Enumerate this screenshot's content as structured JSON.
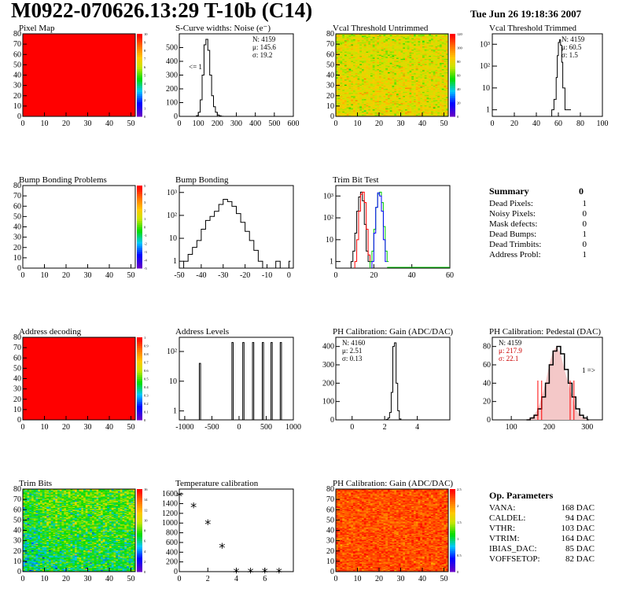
{
  "title": "M0922-070626.13:29 T-10b (C14)",
  "date": "Tue Jun 26 19:18:36 2007",
  "colors": {
    "red": "#ff0000",
    "green": "#00cc00",
    "hist": "#000000",
    "ph_stats": "#cc0000"
  },
  "panels": {
    "pixel_map": {
      "title": "Pixel Map",
      "xticks": [
        0,
        10,
        20,
        30,
        40,
        50
      ],
      "yticks": [
        0,
        10,
        20,
        30,
        40,
        50,
        60,
        70,
        80
      ],
      "palette": [
        "0",
        "1",
        "2",
        "3",
        "4",
        "5",
        "6",
        "7",
        "8",
        "9",
        "10"
      ]
    },
    "scurve": {
      "title": "S-Curve widths: Noise (e⁻)",
      "xticks": [
        0,
        100,
        200,
        300,
        400,
        500,
        600
      ],
      "yticks": [
        0,
        100,
        200,
        300,
        400,
        500
      ],
      "stats": {
        "n": "N: 4159",
        "mu": "μ: 145.6",
        "sigma": "σ: 19.2"
      },
      "note": "<= 1"
    },
    "vcal_untrimmed": {
      "title": "Vcal Threshold Untrimmed",
      "xticks": [
        0,
        10,
        20,
        30,
        40,
        50
      ],
      "yticks": [
        0,
        10,
        20,
        30,
        40,
        50,
        60,
        70,
        80
      ],
      "palette": [
        "0",
        "20",
        "40",
        "60",
        "80",
        "100",
        "120"
      ]
    },
    "vcal_trimmed": {
      "title": "Vcal Threshold Trimmed",
      "xticks": [
        0,
        20,
        40,
        60,
        80,
        100
      ],
      "yticks": [
        "1",
        "10",
        "10²",
        "10³"
      ],
      "stats": {
        "n": "N: 4159",
        "mu": "μ: 60.5",
        "sigma": "σ: 1.5"
      }
    },
    "bump_problems": {
      "title": "Bump Bonding Problems",
      "xticks": [
        0,
        10,
        20,
        30,
        40,
        50
      ],
      "yticks": [
        0,
        10,
        20,
        30,
        40,
        50,
        60,
        70,
        80
      ],
      "palette": [
        "-5",
        "-4",
        "-3",
        "-2",
        "-1",
        "0",
        "1",
        "2",
        "3",
        "4",
        "5"
      ]
    },
    "bump_bonding": {
      "title": "Bump Bonding",
      "xticks": [
        -50,
        -40,
        -30,
        -20,
        -10,
        0
      ],
      "yticks": [
        "1",
        "10",
        "10²",
        "10³"
      ]
    },
    "trim_bit_test": {
      "title": "Trim Bit Test",
      "xticks": [
        0,
        20,
        40,
        60
      ],
      "yticks": [
        "1",
        "10",
        "10²",
        "10³"
      ]
    },
    "summary": {
      "title": "Summary",
      "total": "0",
      "rows": [
        {
          "label": "Dead Pixels:",
          "value": "1"
        },
        {
          "label": "Noisy Pixels:",
          "value": "0"
        },
        {
          "label": "Mask defects:",
          "value": "0"
        },
        {
          "label": "Dead Bumps:",
          "value": "1"
        },
        {
          "label": "Dead Trimbits:",
          "value": "0"
        },
        {
          "label": "Address Probl:",
          "value": "1"
        }
      ]
    },
    "address_decoding": {
      "title": "Address decoding",
      "xticks": [
        0,
        10,
        20,
        30,
        40,
        50
      ],
      "yticks": [
        0,
        10,
        20,
        30,
        40,
        50,
        60,
        70,
        80
      ],
      "palette": [
        "0",
        "0.1",
        "0.2",
        "0.3",
        "0.4",
        "0.5",
        "0.6",
        "0.7",
        "0.8",
        "0.9",
        "1"
      ]
    },
    "address_levels": {
      "title": "Address Levels",
      "xticks": [
        -1000,
        -500,
        0,
        500,
        1000
      ],
      "yticks": [
        "1",
        "10",
        "10²"
      ]
    },
    "ph_gain": {
      "title": "PH Calibration: Gain (ADC/DAC)",
      "xticks": [
        0,
        2,
        4
      ],
      "yticks": [
        0,
        100,
        200,
        300,
        400
      ],
      "stats": {
        "n": "N: 4160",
        "mu": "μ: 2.51",
        "sigma": "σ: 0.13"
      }
    },
    "ph_pedestal": {
      "title": "PH Calibration: Pedestal (DAC)",
      "xticks": [
        100,
        200,
        300
      ],
      "yticks": [
        0,
        20,
        40,
        60,
        80
      ],
      "stats": {
        "n": "N: 4159",
        "mu": "μ: 217.9",
        "sigma": "σ: 22.1"
      },
      "note": "1 =>"
    },
    "trim_bits": {
      "title": "Trim Bits",
      "xticks": [
        0,
        10,
        20,
        30,
        40,
        50
      ],
      "yticks": [
        0,
        10,
        20,
        30,
        40,
        50,
        60,
        70,
        80
      ],
      "palette": [
        "0",
        "2",
        "4",
        "6",
        "8",
        "10",
        "12",
        "14",
        "16"
      ]
    },
    "temperature": {
      "title": "Temperature calibration",
      "xticks": [
        0,
        2,
        4,
        6
      ],
      "yticks": [
        0,
        200,
        400,
        600,
        800,
        1000,
        1200,
        1400,
        1600
      ]
    },
    "ph_gain_map": {
      "title": "PH Calibration: Gain (ADC/DAC)",
      "xticks": [
        0,
        10,
        20,
        30,
        40,
        50
      ],
      "yticks": [
        0,
        10,
        20,
        30,
        40,
        50,
        60,
        70,
        80
      ],
      "palette": [
        "0",
        "0.5",
        "1",
        "1.5",
        "2",
        "2.5"
      ]
    },
    "op_params": {
      "title": "Op. Parameters",
      "rows": [
        {
          "label": "VANA:",
          "value": "168 DAC"
        },
        {
          "label": "CALDEL:",
          "value": "94 DAC"
        },
        {
          "label": "VTHR:",
          "value": "103 DAC"
        },
        {
          "label": "VTRIM:",
          "value": "164 DAC"
        },
        {
          "label": "IBIAS_DAC:",
          "value": "85 DAC"
        },
        {
          "label": "VOFFSETOP:",
          "value": "82 DAC"
        }
      ]
    }
  },
  "chart_data": [
    {
      "type": "heatmap",
      "name": "pixel_map",
      "xlim": [
        0,
        52
      ],
      "ylim": [
        0,
        80
      ],
      "zlim": [
        0,
        10
      ],
      "value": 10,
      "note": "all pixels at max"
    },
    {
      "type": "line",
      "name": "scurve",
      "xlim": [
        0,
        600
      ],
      "ylim": [
        0,
        600
      ],
      "x": [
        80,
        90,
        100,
        110,
        120,
        130,
        140,
        150,
        160,
        170,
        180,
        190,
        200,
        210,
        220,
        230
      ],
      "y": [
        0,
        5,
        30,
        120,
        300,
        520,
        560,
        480,
        300,
        150,
        70,
        30,
        10,
        4,
        1,
        0
      ]
    },
    {
      "type": "heatmap",
      "name": "vcal_untrimmed",
      "xlim": [
        0,
        52
      ],
      "ylim": [
        0,
        80
      ],
      "zlim": [
        0,
        130
      ],
      "mean": 60
    },
    {
      "type": "line",
      "name": "vcal_trimmed",
      "log": true,
      "xlim": [
        0,
        100
      ],
      "ylim": [
        0.5,
        3000
      ],
      "x": [
        54,
        56,
        58,
        59,
        60,
        61,
        62,
        63,
        64,
        66,
        70
      ],
      "y": [
        1,
        3,
        30,
        300,
        1200,
        1600,
        900,
        150,
        10,
        1,
        1
      ]
    },
    {
      "type": "heatmap",
      "name": "bump_problems",
      "xlim": [
        0,
        52
      ],
      "ylim": [
        0,
        80
      ],
      "zlim": [
        -5,
        5
      ],
      "value": 0
    },
    {
      "type": "line",
      "name": "bump_bonding",
      "log": true,
      "xlim": [
        -50,
        2
      ],
      "ylim": [
        0.5,
        2000
      ],
      "x": [
        -48,
        -46,
        -44,
        -42,
        -40,
        -38,
        -36,
        -34,
        -32,
        -30,
        -28,
        -26,
        -24,
        -22,
        -20,
        -18,
        -16,
        -14,
        -12,
        -10,
        -8,
        -6,
        -4,
        -2,
        0
      ],
      "y": [
        1,
        2,
        4,
        8,
        25,
        60,
        90,
        150,
        300,
        500,
        400,
        250,
        120,
        50,
        20,
        8,
        3,
        1,
        0.5,
        0.5,
        0.5,
        1,
        0.5,
        0.5,
        1
      ]
    },
    {
      "type": "line",
      "name": "trim_bit_test",
      "log": true,
      "xlim": [
        0,
        60
      ],
      "ylim": [
        0.5,
        3000
      ],
      "series": [
        {
          "color": "black",
          "x": [
            8,
            9,
            10,
            11,
            12,
            13,
            14,
            15,
            16,
            17
          ],
          "y": [
            1,
            3,
            20,
            200,
            900,
            1500,
            600,
            50,
            3,
            1
          ]
        },
        {
          "color": "red",
          "x": [
            10,
            11,
            12,
            13,
            14,
            15,
            16,
            17,
            18
          ],
          "y": [
            1,
            10,
            200,
            1200,
            1500,
            500,
            30,
            2,
            1
          ]
        },
        {
          "color": "green",
          "x": [
            18,
            19,
            20,
            21,
            22,
            23,
            24,
            25,
            26,
            27
          ],
          "y": [
            1,
            3,
            30,
            300,
            1200,
            1500,
            500,
            40,
            3,
            1
          ]
        },
        {
          "color": "blue",
          "x": [
            19,
            20,
            21,
            22,
            23,
            24,
            25,
            26
          ],
          "y": [
            1,
            20,
            300,
            1400,
            1000,
            200,
            10,
            1
          ]
        }
      ]
    },
    {
      "type": "heatmap",
      "name": "address_decoding",
      "xlim": [
        0,
        52
      ],
      "ylim": [
        0,
        80
      ],
      "zlim": [
        0,
        1
      ],
      "value": 1
    },
    {
      "type": "line",
      "name": "address_levels",
      "log": true,
      "xlim": [
        -1100,
        1000
      ],
      "ylim": [
        0.5,
        300
      ],
      "peaks": [
        -720,
        -120,
        80,
        260,
        440,
        600,
        770
      ]
    },
    {
      "type": "line",
      "name": "ph_gain",
      "xlim": [
        -1,
        6
      ],
      "ylim": [
        0,
        450
      ],
      "x": [
        2.0,
        2.1,
        2.2,
        2.3,
        2.4,
        2.5,
        2.6,
        2.7,
        2.8,
        2.9,
        3.0
      ],
      "y": [
        0,
        2,
        10,
        40,
        150,
        400,
        420,
        200,
        50,
        5,
        0
      ]
    },
    {
      "type": "line",
      "name": "ph_pedestal",
      "xlim": [
        50,
        340
      ],
      "ylim": [
        0,
        90
      ],
      "x": [
        140,
        150,
        160,
        170,
        180,
        190,
        200,
        210,
        220,
        230,
        240,
        250,
        260,
        270,
        280,
        290,
        300
      ],
      "y": [
        0,
        2,
        5,
        12,
        25,
        40,
        60,
        75,
        80,
        72,
        55,
        40,
        25,
        12,
        5,
        2,
        0
      ]
    },
    {
      "type": "heatmap",
      "name": "trim_bits",
      "xlim": [
        0,
        52
      ],
      "ylim": [
        0,
        80
      ],
      "zlim": [
        0,
        16
      ],
      "mean": 7
    },
    {
      "type": "scatter",
      "name": "temperature",
      "xlim": [
        0,
        8
      ],
      "ylim": [
        0,
        1700
      ],
      "x": [
        0,
        1,
        2,
        3,
        4,
        5,
        6,
        7
      ],
      "y": [
        1580,
        1350,
        1000,
        520,
        10,
        10,
        10,
        10
      ]
    },
    {
      "type": "heatmap",
      "name": "ph_gain_map",
      "xlim": [
        0,
        52
      ],
      "ylim": [
        0,
        80
      ],
      "zlim": [
        0,
        2.7
      ],
      "mean": 2.5
    }
  ]
}
